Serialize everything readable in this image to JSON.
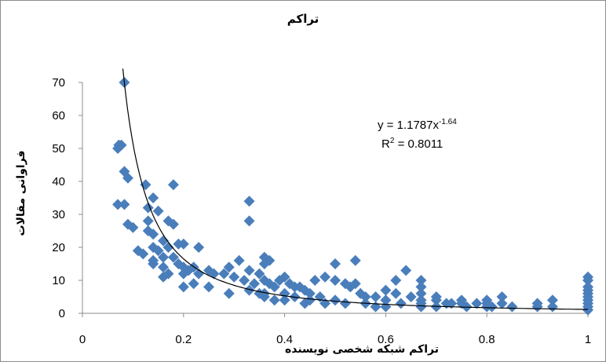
{
  "chart_data": {
    "type": "scatter",
    "title": "تراکم",
    "xlabel": "تراکم شبکه شخصی نویسنده",
    "ylabel": "فراوانی مقالات",
    "xlim": [
      0,
      1
    ],
    "ylim": [
      0,
      70
    ],
    "x_ticks": [
      "0",
      "0.2",
      "0.4",
      "0.6",
      "0.8",
      "1"
    ],
    "y_ticks": [
      "0",
      "10",
      "20",
      "30",
      "40",
      "50",
      "60",
      "70"
    ],
    "grid": false,
    "marker_color": "#4a7ebb",
    "trendline": {
      "type": "power",
      "a": 1.1787,
      "b": -1.64,
      "equation": {
        "prefix": "y = 1.1787x",
        "exponent": "-1.64"
      },
      "r_squared": {
        "base": "R",
        "power": "2",
        "rest": " = 0.8011"
      }
    },
    "points": [
      [
        0.083,
        70
      ],
      [
        0.07,
        50
      ],
      [
        0.072,
        51
      ],
      [
        0.077,
        51
      ],
      [
        0.083,
        43
      ],
      [
        0.09,
        41
      ],
      [
        0.07,
        33
      ],
      [
        0.083,
        33
      ],
      [
        0.09,
        27
      ],
      [
        0.1,
        26
      ],
      [
        0.125,
        39
      ],
      [
        0.18,
        39
      ],
      [
        0.14,
        35
      ],
      [
        0.13,
        32
      ],
      [
        0.15,
        31
      ],
      [
        0.13,
        28
      ],
      [
        0.17,
        28
      ],
      [
        0.18,
        27
      ],
      [
        0.13,
        25
      ],
      [
        0.14,
        24
      ],
      [
        0.16,
        22
      ],
      [
        0.19,
        21
      ],
      [
        0.11,
        19
      ],
      [
        0.12,
        18
      ],
      [
        0.14,
        20
      ],
      [
        0.15,
        19
      ],
      [
        0.17,
        20
      ],
      [
        0.2,
        21
      ],
      [
        0.23,
        20
      ],
      [
        0.14,
        16
      ],
      [
        0.16,
        17
      ],
      [
        0.18,
        17
      ],
      [
        0.19,
        15
      ],
      [
        0.2,
        14
      ],
      [
        0.16,
        14
      ],
      [
        0.14,
        15
      ],
      [
        0.17,
        12
      ],
      [
        0.2,
        12
      ],
      [
        0.16,
        11
      ],
      [
        0.21,
        13
      ],
      [
        0.22,
        14
      ],
      [
        0.23,
        12
      ],
      [
        0.25,
        13
      ],
      [
        0.26,
        12
      ],
      [
        0.28,
        12
      ],
      [
        0.29,
        14
      ],
      [
        0.3,
        11
      ],
      [
        0.2,
        8
      ],
      [
        0.22,
        9
      ],
      [
        0.25,
        8
      ],
      [
        0.29,
        6
      ],
      [
        0.31,
        16
      ],
      [
        0.33,
        13
      ],
      [
        0.35,
        12
      ],
      [
        0.32,
        10
      ],
      [
        0.34,
        9
      ],
      [
        0.36,
        10
      ],
      [
        0.37,
        9
      ],
      [
        0.38,
        8
      ],
      [
        0.33,
        7
      ],
      [
        0.35,
        6
      ],
      [
        0.36,
        5
      ],
      [
        0.33,
        34
      ],
      [
        0.33,
        28
      ],
      [
        0.36,
        17
      ],
      [
        0.37,
        16
      ],
      [
        0.36,
        15
      ],
      [
        0.39,
        10
      ],
      [
        0.4,
        11
      ],
      [
        0.41,
        9
      ],
      [
        0.42,
        8
      ],
      [
        0.43,
        8
      ],
      [
        0.44,
        7
      ],
      [
        0.45,
        6
      ],
      [
        0.46,
        10
      ],
      [
        0.48,
        11
      ],
      [
        0.5,
        10
      ],
      [
        0.52,
        9
      ],
      [
        0.53,
        8
      ],
      [
        0.5,
        15
      ],
      [
        0.54,
        16
      ],
      [
        0.55,
        6
      ],
      [
        0.56,
        5
      ],
      [
        0.4,
        6
      ],
      [
        0.42,
        5
      ],
      [
        0.45,
        4
      ],
      [
        0.47,
        5
      ],
      [
        0.5,
        4
      ],
      [
        0.52,
        3
      ],
      [
        0.44,
        3
      ],
      [
        0.48,
        3
      ],
      [
        0.4,
        4
      ],
      [
        0.6,
        7
      ],
      [
        0.62,
        6
      ],
      [
        0.58,
        5
      ],
      [
        0.6,
        4
      ],
      [
        0.63,
        3
      ],
      [
        0.65,
        5
      ],
      [
        0.64,
        13
      ],
      [
        0.62,
        10
      ],
      [
        0.67,
        10
      ],
      [
        0.67,
        8
      ],
      [
        0.67,
        6
      ],
      [
        0.67,
        4
      ],
      [
        0.67,
        3
      ],
      [
        0.67,
        2
      ],
      [
        0.7,
        5
      ],
      [
        0.7,
        4
      ],
      [
        0.72,
        3
      ],
      [
        0.73,
        3
      ],
      [
        0.75,
        4
      ],
      [
        0.75,
        3
      ],
      [
        0.76,
        2
      ],
      [
        0.78,
        3
      ],
      [
        0.8,
        4
      ],
      [
        0.8,
        3
      ],
      [
        0.81,
        2
      ],
      [
        0.83,
        5
      ],
      [
        0.83,
        3
      ],
      [
        0.85,
        2
      ],
      [
        0.9,
        3
      ],
      [
        0.9,
        2
      ],
      [
        0.93,
        4
      ],
      [
        0.93,
        2
      ],
      [
        0.58,
        2
      ],
      [
        0.6,
        2
      ],
      [
        0.7,
        2
      ],
      [
        0.8,
        2
      ],
      [
        1,
        11
      ],
      [
        1,
        10
      ],
      [
        1,
        8
      ],
      [
        1,
        7
      ],
      [
        1,
        6
      ],
      [
        1,
        5
      ],
      [
        1,
        4
      ],
      [
        1,
        3
      ],
      [
        1,
        2
      ],
      [
        1,
        1
      ],
      [
        0.56,
        3
      ],
      [
        0.54,
        9
      ],
      [
        0.38,
        4
      ],
      [
        0.36,
        6
      ]
    ]
  }
}
